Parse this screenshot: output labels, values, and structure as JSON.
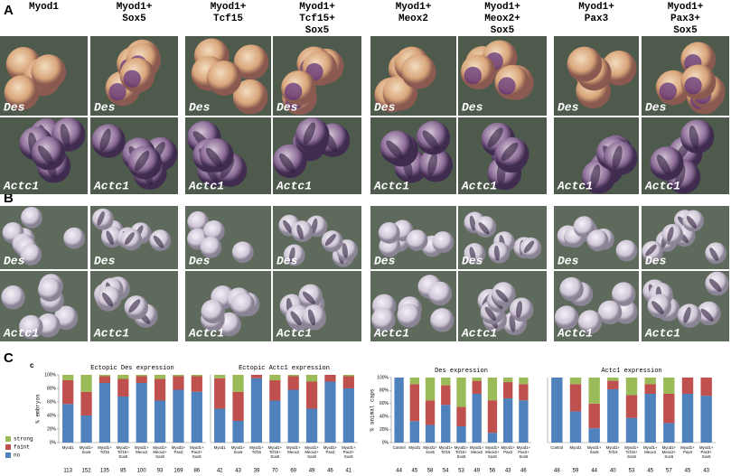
{
  "panels": [
    {
      "label": "A",
      "columns": [
        "Myod1",
        "Myod1+Sox5",
        "Myod1+Tcf15",
        "Myod1+Tcf15+Sox5",
        "Myod1+Meox2",
        "Myod1+Meox2+Sox5",
        "Myod1+Pax3",
        "Myod1+Pax3+Sox5"
      ],
      "rows": [
        "Des",
        "Actc1"
      ]
    },
    {
      "label": "B",
      "rows": [
        "Des",
        "Actc1"
      ]
    },
    {
      "label": "C"
    }
  ],
  "chart_data": [
    {
      "type": "bar",
      "stacked": true,
      "subpanel_label": "c",
      "title": "Ectopic Des expression",
      "ylabel": "% embryos",
      "categories": [
        "Myod1",
        "Myod1+Sox5",
        "Myod1+Tcf15",
        "Myod1+Tcf15+Sox5",
        "Myod1+Meox2",
        "Myod1+Meox2+Sox5",
        "Myod1+Pax3",
        "Myod1+Pax3+Sox5"
      ],
      "n": [
        113,
        152,
        135,
        85,
        100,
        93,
        169,
        86
      ],
      "series": [
        {
          "name": "no",
          "color": "#4f81bd",
          "values": [
            57,
            40,
            88,
            68,
            88,
            62,
            78,
            75
          ]
        },
        {
          "name": "faint",
          "color": "#c0504d",
          "values": [
            35,
            35,
            10,
            26,
            10,
            32,
            20,
            23
          ]
        },
        {
          "name": "strong",
          "color": "#9bbb59",
          "values": [
            8,
            25,
            2,
            6,
            2,
            6,
            2,
            2
          ]
        }
      ],
      "ylim": [
        0,
        100
      ],
      "yticks": [
        {
          "value": 0,
          "label": "0%"
        },
        {
          "value": 20,
          "label": "20%"
        },
        {
          "value": 40,
          "label": "40%"
        },
        {
          "value": 60,
          "label": "60%"
        },
        {
          "value": 80,
          "label": "80%"
        },
        {
          "value": 100,
          "label": "100%"
        }
      ]
    },
    {
      "type": "bar",
      "stacked": true,
      "title": "Ectopic Actc1 expression",
      "categories": [
        "Myod1",
        "Myod1+Sox5",
        "Myod1+Tcf15",
        "Myod1+Tcf15+Sox5",
        "Myod1+Meox2",
        "Myod1+Meox2+Sox5",
        "Myod1+Pax3",
        "Myod1+Pax3+Sox5"
      ],
      "n": [
        42,
        43,
        39,
        70,
        69,
        49,
        46,
        41
      ],
      "series": [
        {
          "color": "#4f81bd",
          "values": [
            50,
            32,
            95,
            62,
            78,
            50,
            90,
            80
          ]
        },
        {
          "color": "#c0504d",
          "values": [
            45,
            43,
            5,
            30,
            20,
            40,
            10,
            18
          ]
        },
        {
          "color": "#9bbb59",
          "values": [
            5,
            25,
            0,
            8,
            2,
            10,
            0,
            2
          ]
        }
      ],
      "ylim": [
        0,
        100
      ]
    },
    {
      "type": "bar",
      "stacked": true,
      "title": "Des expression",
      "ylabel": "% animal caps",
      "categories": [
        "Control",
        "Myod1",
        "Myod1+Sox5",
        "Myod1+Tcf15",
        "Myod1+Tcf15+Sox5",
        "Myod1+Meox2",
        "Myod1+Meox2+Sox5",
        "Myod1+Pax3",
        "Myod1+Pax3+Sox5"
      ],
      "n": [
        44,
        45,
        58,
        54,
        53,
        49,
        56,
        43,
        46
      ],
      "series": [
        {
          "color": "#4f81bd",
          "values": [
            100,
            33,
            27,
            58,
            25,
            75,
            15,
            68,
            65
          ]
        },
        {
          "color": "#c0504d",
          "values": [
            0,
            57,
            38,
            30,
            30,
            20,
            50,
            25,
            25
          ]
        },
        {
          "color": "#9bbb59",
          "values": [
            0,
            10,
            35,
            12,
            45,
            5,
            35,
            7,
            10
          ]
        }
      ],
      "ylim": [
        0,
        100
      ],
      "yticks": [
        {
          "value": 0,
          "label": "0%"
        },
        {
          "value": 20,
          "label": "20%"
        },
        {
          "value": 40,
          "label": "40%"
        },
        {
          "value": 60,
          "label": "60%"
        },
        {
          "value": 80,
          "label": "80%"
        },
        {
          "value": 100,
          "label": "100%"
        }
      ]
    },
    {
      "type": "bar",
      "stacked": true,
      "title": "Actc1 expression",
      "categories": [
        "Control",
        "Myod1",
        "Myod1+Sox5",
        "Myod1+Tcf15",
        "Myod1+Tcf15+Sox5",
        "Myod1+Meox2",
        "Myod1+Meox2+Sox5",
        "Myod1+Pax3",
        "Myod1+Pax3+Sox5"
      ],
      "n": [
        48,
        59,
        44,
        40,
        53,
        45,
        57,
        45,
        43
      ],
      "series": [
        {
          "color": "#4f81bd",
          "values": [
            100,
            48,
            22,
            82,
            38,
            75,
            30,
            75,
            72
          ]
        },
        {
          "color": "#c0504d",
          "values": [
            0,
            42,
            38,
            13,
            35,
            15,
            45,
            25,
            28
          ]
        },
        {
          "color": "#9bbb59",
          "values": [
            0,
            10,
            40,
            5,
            27,
            10,
            25,
            0,
            0
          ]
        }
      ],
      "ylim": [
        0,
        100
      ]
    }
  ]
}
